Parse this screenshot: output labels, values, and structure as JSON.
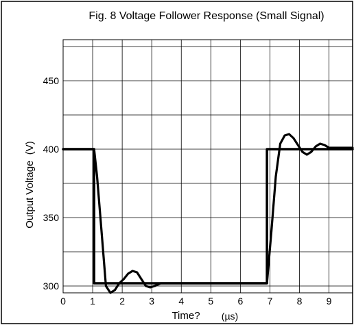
{
  "chart_data": {
    "type": "line",
    "title": "Fig. 8 Voltage Follower Response (Small Signal)",
    "xlabel": "Time?",
    "xunit": "(µs)",
    "ylabel": "Output Voltage  (V)",
    "xlim": [
      0,
      9.8
    ],
    "ylim": [
      295,
      480
    ],
    "xticks": [
      {
        "v": 0,
        "label": "0"
      },
      {
        "v": 1,
        "label": "1"
      },
      {
        "v": 2,
        "label": "2"
      },
      {
        "v": 3,
        "label": "3"
      },
      {
        "v": 4,
        "label": "4"
      },
      {
        "v": 5,
        "label": "5"
      },
      {
        "v": 6,
        "label": "6"
      },
      {
        "v": 7,
        "label": "7"
      },
      {
        "v": 8,
        "label": "8"
      },
      {
        "v": 9,
        "label": "9"
      }
    ],
    "yticks": [
      {
        "v": 300,
        "label": "300"
      },
      {
        "v": 350,
        "label": "350"
      },
      {
        "v": 400,
        "label": "400"
      },
      {
        "v": 450,
        "label": "450"
      }
    ],
    "grid": true,
    "legend": "none",
    "series": [
      {
        "role": "input",
        "x": [
          0,
          1.05,
          1.05,
          6.9,
          6.9,
          9.8
        ],
        "y": [
          400,
          400,
          302,
          302,
          400,
          400
        ]
      },
      {
        "role": "output",
        "x": [
          0,
          1.05,
          1.15,
          1.3,
          1.45,
          1.6,
          1.75,
          1.9,
          2.05,
          2.2,
          2.35,
          2.5,
          2.65,
          2.8,
          2.95,
          3.1,
          3.2,
          3.3,
          3.4,
          6.9,
          7.05,
          7.2,
          7.35,
          7.5,
          7.65,
          7.8,
          7.95,
          8.1,
          8.25,
          8.4,
          8.55,
          8.7,
          8.85,
          9.0,
          9.8
        ],
        "y": [
          400,
          400,
          380,
          340,
          300,
          295,
          297,
          302,
          305,
          309,
          311,
          310,
          305,
          300,
          299,
          300,
          301,
          302,
          302,
          302,
          340,
          380,
          404,
          410,
          411,
          408,
          403,
          398,
          396,
          398,
          402,
          404,
          403,
          401,
          401
        ]
      }
    ]
  }
}
